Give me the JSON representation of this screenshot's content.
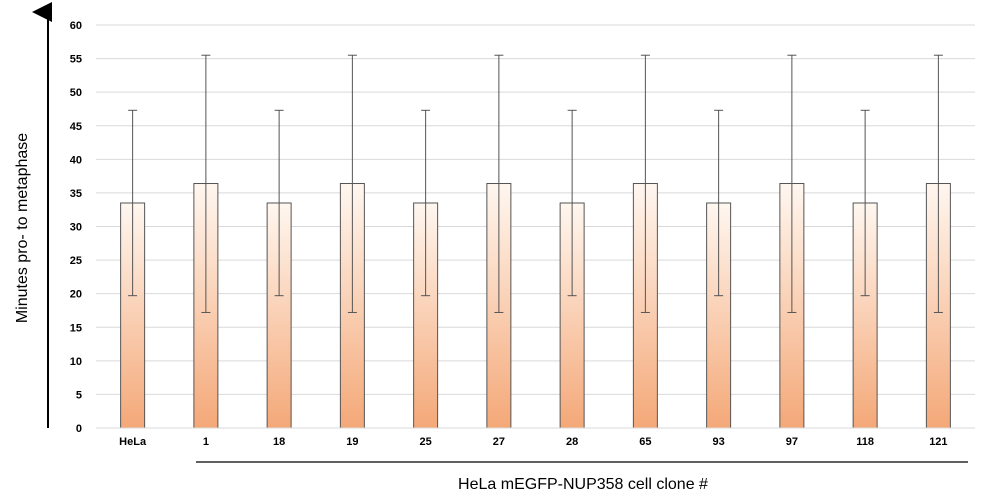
{
  "chart_data": {
    "type": "bar",
    "categories": [
      "HeLa",
      "1",
      "18",
      "19",
      "25",
      "27",
      "28",
      "65",
      "93",
      "97",
      "118",
      "121"
    ],
    "values": [
      33.5,
      36.4,
      33.5,
      36.4,
      33.5,
      36.4,
      33.5,
      36.4,
      33.5,
      36.4,
      33.5,
      36.4
    ],
    "error_upper": [
      47.3,
      55.5,
      47.3,
      55.5,
      47.3,
      55.5,
      47.3,
      55.5,
      47.3,
      55.5,
      47.3,
      55.5
    ],
    "error_lower": [
      19.7,
      17.2,
      19.7,
      17.2,
      19.7,
      17.2,
      19.7,
      17.2,
      19.7,
      17.2,
      19.7,
      17.2
    ],
    "title": "",
    "xlabel": "HeLa mEGFP-NUP358 cell clone #",
    "ylabel": "Minutes pro- to metaphase",
    "ylim": [
      0,
      60
    ],
    "yticks": [
      0,
      5,
      10,
      15,
      20,
      25,
      30,
      35,
      40,
      45,
      50,
      55,
      60
    ],
    "grid": true,
    "legend": "none"
  },
  "colors": {
    "bar_top": "#fff7f0",
    "bar_bottom": "#f4a878",
    "bar_stroke": "#555555",
    "grid": "#d9d9d9",
    "error_bar": "#555555"
  }
}
